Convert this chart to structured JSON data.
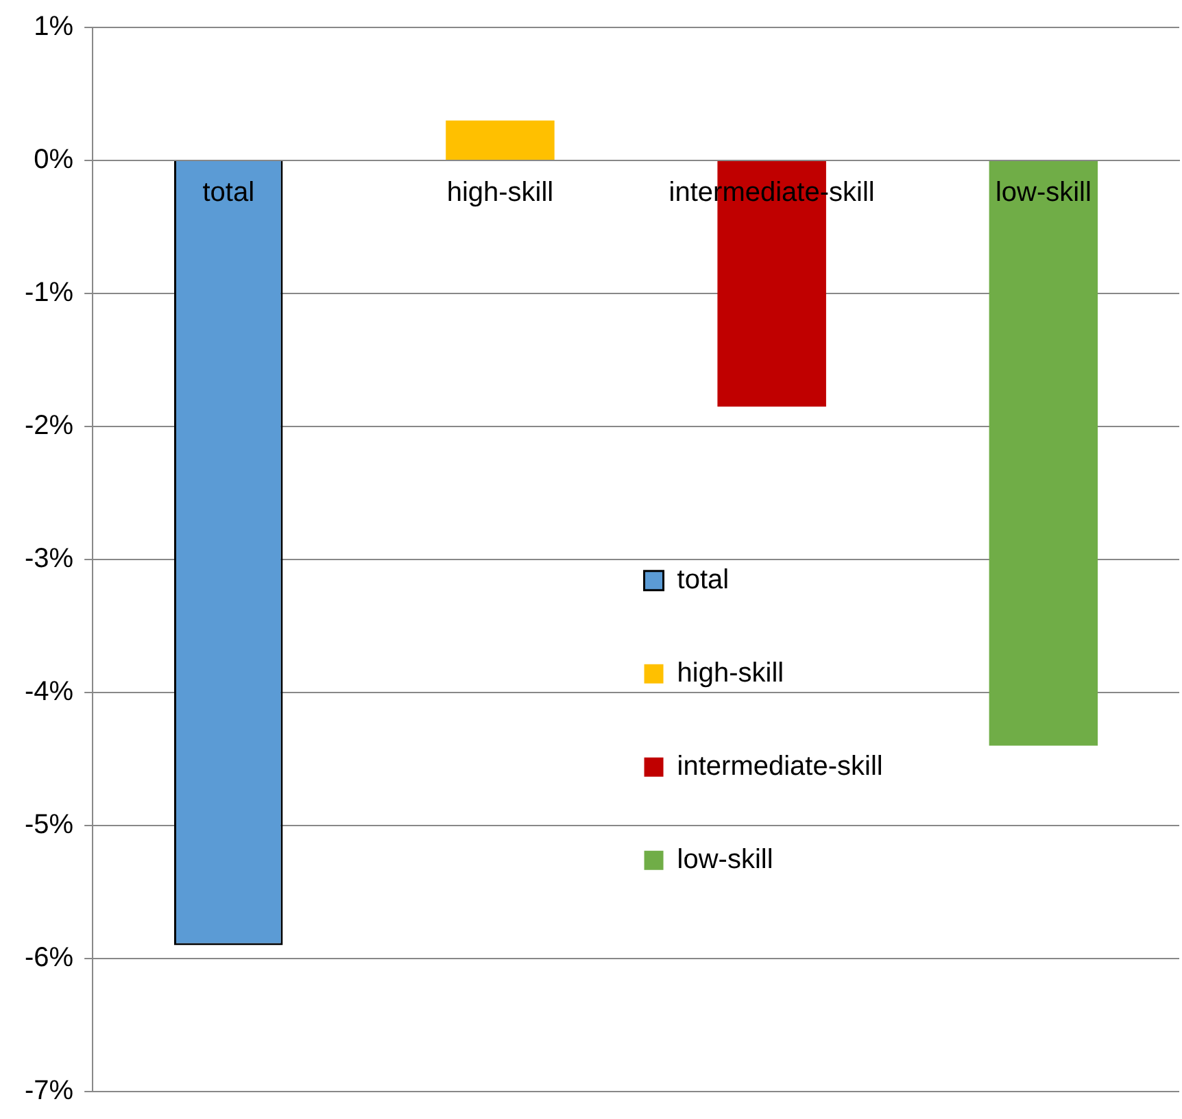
{
  "chart_data": {
    "type": "bar",
    "categories": [
      "total",
      "high-skill",
      "intermediate-skill",
      "low-skill"
    ],
    "series": [
      {
        "name": "total",
        "color": "#5b9bd5",
        "values": [
          -5.9,
          null,
          null,
          null
        ]
      },
      {
        "name": "high-skill",
        "color": "#ffc000",
        "values": [
          null,
          0.3,
          null,
          null
        ]
      },
      {
        "name": "intermediate-skill",
        "color": "#c00000",
        "values": [
          null,
          null,
          -1.85,
          null
        ]
      },
      {
        "name": "low-skill",
        "color": "#70ad47",
        "values": [
          null,
          null,
          null,
          -4.4
        ]
      }
    ],
    "ylim": [
      -7,
      1
    ],
    "yticks": [
      {
        "value": -7,
        "label": "-7%"
      },
      {
        "value": -6,
        "label": "-6%"
      },
      {
        "value": -5,
        "label": "-5%"
      },
      {
        "value": -4,
        "label": "-4%"
      },
      {
        "value": -3,
        "label": "-3%"
      },
      {
        "value": -2,
        "label": "-2%"
      },
      {
        "value": -1,
        "label": "-1%"
      },
      {
        "value": 0,
        "label": "0%"
      },
      {
        "value": 1,
        "label": "1%"
      }
    ],
    "grid": "y",
    "legend": "center"
  }
}
